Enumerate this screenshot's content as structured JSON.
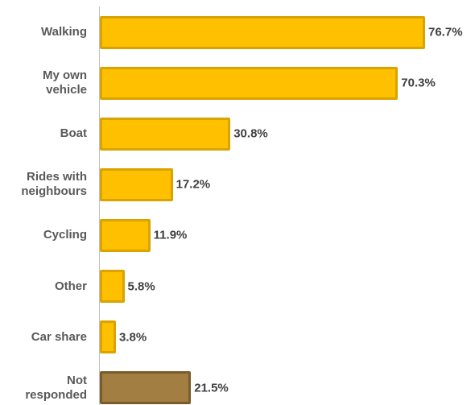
{
  "chart_data": {
    "type": "bar",
    "orientation": "horizontal",
    "categories": [
      "Walking",
      "My own\nvehicle",
      "Boat",
      "Rides with\nneighbours",
      "Cycling",
      "Other",
      "Car share",
      "Not\nresponded"
    ],
    "values": [
      76.7,
      70.3,
      30.8,
      17.2,
      11.9,
      5.8,
      3.8,
      21.5
    ],
    "value_labels": [
      "76.7%",
      "70.3%",
      "30.8%",
      "17.2%",
      "11.9%",
      "5.8%",
      "3.8%",
      "21.5%"
    ],
    "colors": [
      "#FFC000",
      "#FFC000",
      "#FFC000",
      "#FFC000",
      "#FFC000",
      "#FFC000",
      "#FFC000",
      "#A27E43"
    ],
    "border_colors": [
      "#D9A300",
      "#D9A300",
      "#D9A300",
      "#D9A300",
      "#D9A300",
      "#D9A300",
      "#D9A300",
      "#7A5C2B"
    ]
  }
}
